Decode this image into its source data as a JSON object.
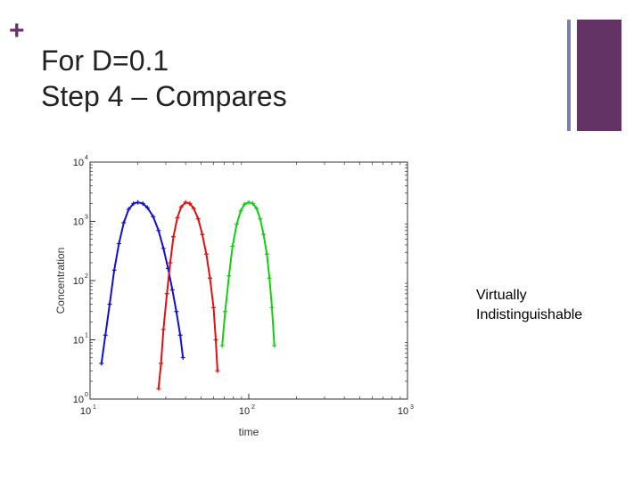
{
  "slide": {
    "plus_symbol": "+",
    "title_line1": "For D=0.1",
    "title_line2": "Step 4 – Compares",
    "note_line1": "Virtually",
    "note_line2": "Indistinguishable",
    "accent_color": "#633366",
    "accent_color_light": "#7b7fb0"
  },
  "chart_data": {
    "type": "scatter",
    "xscale": "log",
    "yscale": "log",
    "xlim": [
      10,
      1000
    ],
    "ylim": [
      1,
      10000
    ],
    "xlabel": "time",
    "ylabel": "Concentration",
    "x_ticks": [
      {
        "base": "10",
        "exp": "1"
      },
      {
        "base": "10",
        "exp": "2"
      },
      {
        "base": "10",
        "exp": "3"
      }
    ],
    "y_ticks": [
      {
        "base": "10",
        "exp": "0"
      },
      {
        "base": "10",
        "exp": "1"
      },
      {
        "base": "10",
        "exp": "2"
      },
      {
        "base": "10",
        "exp": "3"
      },
      {
        "base": "10",
        "exp": "4"
      }
    ],
    "series": [
      {
        "color": "#1010d0",
        "peak_x": 20,
        "peak_y": 2100,
        "points": [
          [
            11.8,
            4
          ],
          [
            12.5,
            12
          ],
          [
            13.3,
            40
          ],
          [
            14.2,
            150
          ],
          [
            15.2,
            420
          ],
          [
            16.3,
            950
          ],
          [
            17.5,
            1600
          ],
          [
            18.8,
            2000
          ],
          [
            20,
            2100
          ],
          [
            21.5,
            2000
          ],
          [
            23,
            1700
          ],
          [
            25,
            1200
          ],
          [
            27,
            700
          ],
          [
            29,
            350
          ],
          [
            31,
            160
          ],
          [
            33,
            70
          ],
          [
            35,
            30
          ],
          [
            37,
            12
          ],
          [
            38.5,
            5
          ]
        ]
      },
      {
        "color": "#e01010",
        "peak_x": 40,
        "peak_y": 2100,
        "points": [
          [
            27,
            1.5
          ],
          [
            28,
            4
          ],
          [
            29,
            15
          ],
          [
            30.5,
            60
          ],
          [
            32,
            200
          ],
          [
            33.5,
            550
          ],
          [
            35.5,
            1150
          ],
          [
            37.5,
            1750
          ],
          [
            40,
            2100
          ],
          [
            42.5,
            2000
          ],
          [
            45,
            1650
          ],
          [
            48,
            1100
          ],
          [
            51,
            600
          ],
          [
            54,
            280
          ],
          [
            57,
            110
          ],
          [
            60,
            35
          ],
          [
            62,
            10
          ],
          [
            63.5,
            3
          ]
        ]
      },
      {
        "color": "#10d010",
        "peak_x": 100,
        "peak_y": 2100,
        "points": [
          [
            68,
            8
          ],
          [
            71,
            30
          ],
          [
            75,
            120
          ],
          [
            79,
            380
          ],
          [
            84,
            900
          ],
          [
            89,
            1500
          ],
          [
            94,
            1950
          ],
          [
            100,
            2100
          ],
          [
            106,
            2000
          ],
          [
            112,
            1650
          ],
          [
            118,
            1100
          ],
          [
            124,
            600
          ],
          [
            130,
            280
          ],
          [
            135,
            110
          ],
          [
            140,
            35
          ],
          [
            145,
            8
          ]
        ]
      }
    ]
  }
}
